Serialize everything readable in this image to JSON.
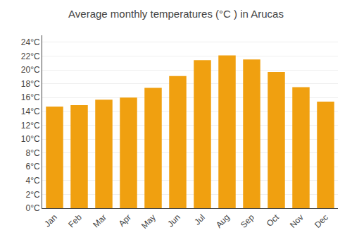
{
  "chart_data": {
    "type": "bar",
    "title": "Average monthly temperatures (°C ) in Arucas",
    "categories": [
      "Jan",
      "Feb",
      "Mar",
      "Apr",
      "May",
      "Jun",
      "Jul",
      "Aug",
      "Sep",
      "Oct",
      "Nov",
      "Dec"
    ],
    "values": [
      14.7,
      14.9,
      15.7,
      16.0,
      17.4,
      19.1,
      21.4,
      22.1,
      21.5,
      19.7,
      17.5,
      15.4
    ],
    "color": "#F0A010",
    "ylim": [
      0,
      25
    ],
    "yticks": [
      {
        "value": 0,
        "label": "0°C"
      },
      {
        "value": 2,
        "label": "2°C"
      },
      {
        "value": 4,
        "label": "4°C"
      },
      {
        "value": 6,
        "label": "6°C"
      },
      {
        "value": 8,
        "label": "8°C"
      },
      {
        "value": 10,
        "label": "10°C"
      },
      {
        "value": 12,
        "label": "12°C"
      },
      {
        "value": 14,
        "label": "14°C"
      },
      {
        "value": 16,
        "label": "16°C"
      },
      {
        "value": 18,
        "label": "18°C"
      },
      {
        "value": 20,
        "label": "20°C"
      },
      {
        "value": 22,
        "label": "22°C"
      },
      {
        "value": 24,
        "label": "24°C"
      }
    ],
    "grid": true
  }
}
